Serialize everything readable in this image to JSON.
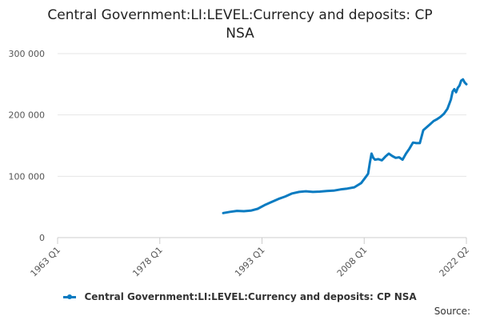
{
  "chart_data": {
    "type": "line",
    "title_lines": [
      "Central Government:LI:LEVEL:Currency and deposits: CP",
      "NSA"
    ],
    "xlabel": "",
    "ylabel": "",
    "x_ticks": [
      "1963 Q1",
      "1978 Q1",
      "1993 Q1",
      "2008 Q1",
      "2022 Q2"
    ],
    "x_range": [
      1963.0,
      2022.25
    ],
    "y_ticks": [
      "0",
      "100 000",
      "200 000",
      "300 000"
    ],
    "y_tick_values": [
      0,
      100000,
      200000,
      300000
    ],
    "ylim": [
      0,
      300000
    ],
    "grid": "horizontal",
    "legend_position": "bottom",
    "series": [
      {
        "name": "Central Government:LI:LEVEL:Currency and deposits: CP NSA",
        "color": "#0a7bc1",
        "points": [
          [
            1987.0,
            40000
          ],
          [
            1988.0,
            42000
          ],
          [
            1989.0,
            43500
          ],
          [
            1990.0,
            43000
          ],
          [
            1991.0,
            44000
          ],
          [
            1992.0,
            47000
          ],
          [
            1993.0,
            53000
          ],
          [
            1994.0,
            58000
          ],
          [
            1995.0,
            63000
          ],
          [
            1996.0,
            67000
          ],
          [
            1997.0,
            72000
          ],
          [
            1998.0,
            74500
          ],
          [
            1999.0,
            75500
          ],
          [
            2000.0,
            74500
          ],
          [
            2001.0,
            75000
          ],
          [
            2002.0,
            76000
          ],
          [
            2003.0,
            76500
          ],
          [
            2004.0,
            78500
          ],
          [
            2005.0,
            80000
          ],
          [
            2006.0,
            82000
          ],
          [
            2007.0,
            89000
          ],
          [
            2007.75,
            100000
          ],
          [
            2008.0,
            104000
          ],
          [
            2008.25,
            122000
          ],
          [
            2008.5,
            137000
          ],
          [
            2008.75,
            130000
          ],
          [
            2009.0,
            127000
          ],
          [
            2009.5,
            128000
          ],
          [
            2010.0,
            126000
          ],
          [
            2010.5,
            132000
          ],
          [
            2011.0,
            137000
          ],
          [
            2011.5,
            133000
          ],
          [
            2012.0,
            130000
          ],
          [
            2012.5,
            131000
          ],
          [
            2013.0,
            127000
          ],
          [
            2013.5,
            137000
          ],
          [
            2014.0,
            145000
          ],
          [
            2014.5,
            155000
          ],
          [
            2015.0,
            154000
          ],
          [
            2015.5,
            154000
          ],
          [
            2016.0,
            175000
          ],
          [
            2016.5,
            180000
          ],
          [
            2017.0,
            185000
          ],
          [
            2017.5,
            190000
          ],
          [
            2018.0,
            193000
          ],
          [
            2018.5,
            197000
          ],
          [
            2019.0,
            202000
          ],
          [
            2019.5,
            210000
          ],
          [
            2020.0,
            225000
          ],
          [
            2020.25,
            238000
          ],
          [
            2020.5,
            242000
          ],
          [
            2020.75,
            237000
          ],
          [
            2021.0,
            244000
          ],
          [
            2021.25,
            248000
          ],
          [
            2021.5,
            256000
          ],
          [
            2021.75,
            258000
          ],
          [
            2022.0,
            253000
          ],
          [
            2022.25,
            250000
          ]
        ]
      }
    ]
  },
  "source_label": "Source:"
}
